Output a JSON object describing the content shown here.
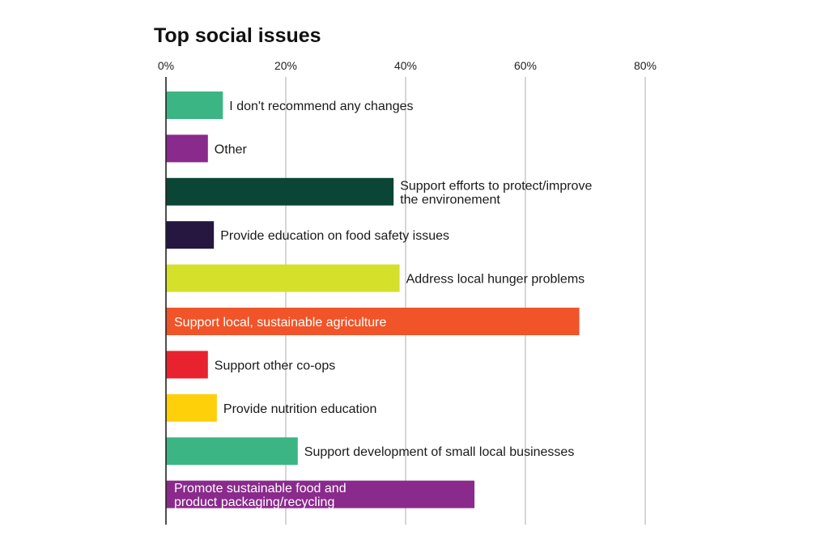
{
  "chart_data": {
    "type": "bar",
    "orientation": "horizontal",
    "title": "Top social issues",
    "xlabel": "",
    "ylabel": "",
    "xlim": [
      0,
      80
    ],
    "tick_values": [
      0,
      20,
      40,
      60,
      80
    ],
    "tick_labels": [
      "0%",
      "20%",
      "40%",
      "60%",
      "80%"
    ],
    "grid": true,
    "bars": [
      {
        "label": [
          "I don't recommend any changes"
        ],
        "value": 9.5,
        "color": "#3bb584",
        "label_position": "outside"
      },
      {
        "label": [
          "Other"
        ],
        "value": 7,
        "color": "#8a2a8c",
        "label_position": "outside"
      },
      {
        "label": [
          "Support efforts to protect/improve",
          "the environement"
        ],
        "value": 38,
        "color": "#0b4535",
        "label_position": "outside"
      },
      {
        "label": [
          "Provide education on food safety issues"
        ],
        "value": 8,
        "color": "#25173f",
        "label_position": "outside"
      },
      {
        "label": [
          "Address local hunger problems"
        ],
        "value": 39,
        "color": "#d5e02b",
        "label_position": "outside"
      },
      {
        "label": [
          "Support local, sustainable agriculture"
        ],
        "value": 69,
        "color": "#f05428",
        "label_position": "inside"
      },
      {
        "label": [
          "Support other co-ops"
        ],
        "value": 7,
        "color": "#e8222e",
        "label_position": "outside"
      },
      {
        "label": [
          "Provide nutrition education"
        ],
        "value": 8.5,
        "color": "#fdd00a",
        "label_position": "outside"
      },
      {
        "label": [
          "Support development of small local businesses"
        ],
        "value": 22,
        "color": "#3bb584",
        "label_position": "outside"
      },
      {
        "label": [
          "Promote sustainable food and",
          "product packaging/recycling"
        ],
        "value": 51.5,
        "color": "#8a2a8c",
        "label_position": "inside"
      }
    ]
  }
}
